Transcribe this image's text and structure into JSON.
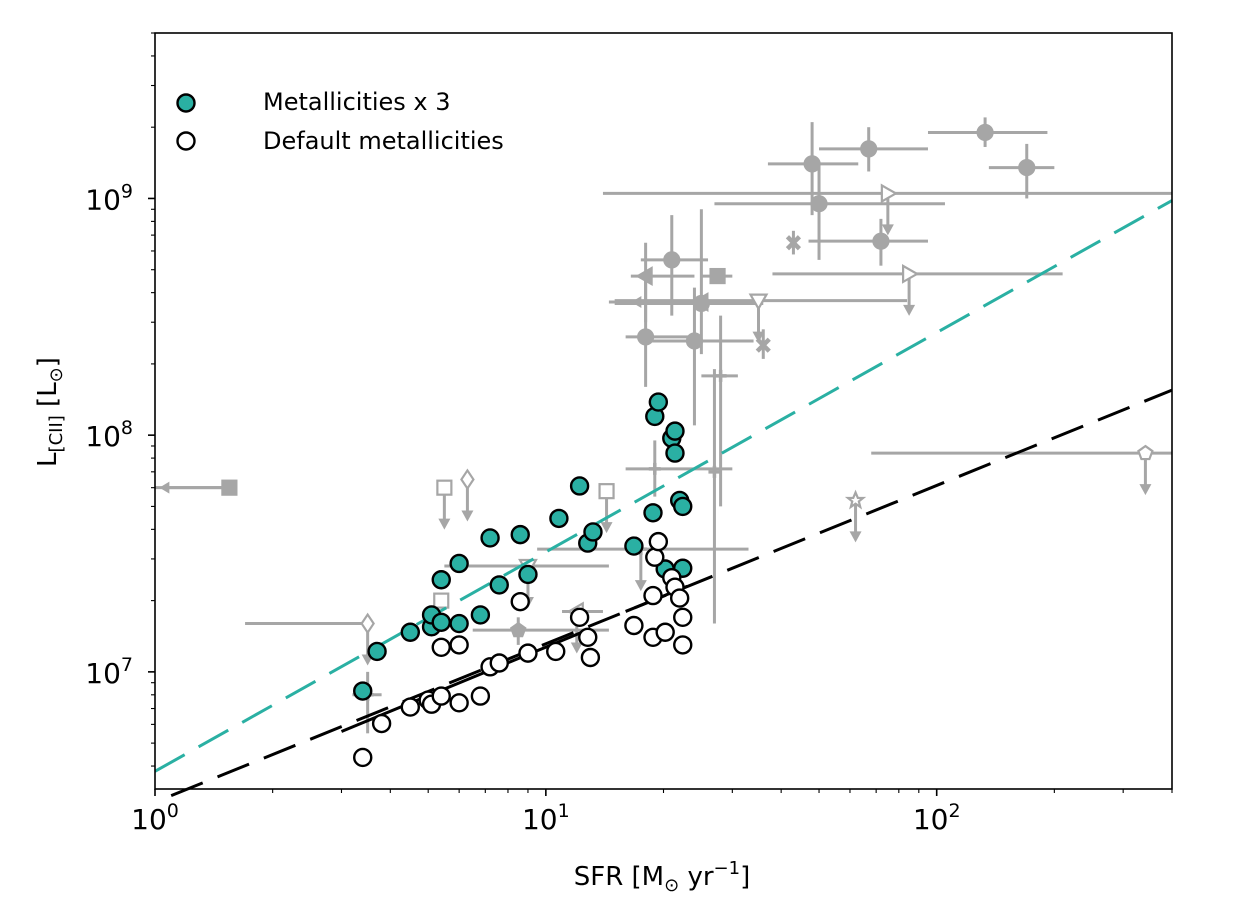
{
  "chart_data": {
    "type": "scatter",
    "xscale": "log",
    "yscale": "log",
    "xlim": [
      1,
      400
    ],
    "ylim": [
      3200000.0,
      5000000000.0
    ],
    "grid": false,
    "legend_position": "top-left",
    "xlabel": {
      "main": "SFR [M",
      "sub": "⊙",
      "mid": " yr",
      "sup": "−1",
      "end": "]"
    },
    "ylabel": {
      "main": "L",
      "sub": "[CII]",
      "mid": " [L",
      "sub2": "⊙",
      "end": "]"
    },
    "xticks": [
      {
        "value": 1,
        "base": "10",
        "exp": "0"
      },
      {
        "value": 10,
        "base": "10",
        "exp": "1"
      },
      {
        "value": 100,
        "base": "10",
        "exp": "2"
      }
    ],
    "yticks": [
      {
        "value": 10000000.0,
        "base": "10",
        "exp": "7"
      },
      {
        "value": 100000000.0,
        "base": "10",
        "exp": "8"
      },
      {
        "value": 1000000000.0,
        "base": "10",
        "exp": "9"
      }
    ],
    "colors": {
      "teal": "#2ab0a3",
      "black": "#000000",
      "grey": "#a6a6a6"
    },
    "legend": [
      {
        "label": "Metallicities x 3",
        "style": "filled"
      },
      {
        "label": "Default metallicities",
        "style": "open"
      }
    ],
    "series": [
      {
        "name": "Metallicities x 3",
        "marker": "filled-circle",
        "points": [
          [
            3.4,
            8300000.0
          ],
          [
            3.7,
            12200000.0
          ],
          [
            4.5,
            14700000.0
          ],
          [
            5.1,
            15500000.0
          ],
          [
            5.1,
            17400000.0
          ],
          [
            5.4,
            16200000.0
          ],
          [
            5.4,
            24500000.0
          ],
          [
            6.0,
            16000000.0
          ],
          [
            6.0,
            28700000.0
          ],
          [
            6.8,
            17400000.0
          ],
          [
            7.2,
            36800000.0
          ],
          [
            7.6,
            23300000.0
          ],
          [
            8.6,
            38000000.0
          ],
          [
            9.0,
            25800000.0
          ],
          [
            10.8,
            44500000.0
          ],
          [
            12.2,
            61000000.0
          ],
          [
            12.8,
            35000000.0
          ],
          [
            13.2,
            39000000.0
          ],
          [
            16.8,
            34000000.0
          ],
          [
            18.8,
            47000000.0
          ],
          [
            19.0,
            120000000.0
          ],
          [
            19.4,
            138000000.0
          ],
          [
            20.2,
            27200000.0
          ],
          [
            21.0,
            97000000.0
          ],
          [
            21.4,
            104000000.0
          ],
          [
            21.4,
            84000000.0
          ],
          [
            22.0,
            53000000.0
          ],
          [
            22.4,
            50000000.0
          ],
          [
            22.4,
            27400000.0
          ]
        ]
      },
      {
        "name": "Default metallicities",
        "marker": "open-circle",
        "points": [
          [
            3.4,
            4350000.0
          ],
          [
            3.8,
            6050000.0
          ],
          [
            4.5,
            7100000.0
          ],
          [
            5.0,
            7600000.0
          ],
          [
            5.1,
            7300000.0
          ],
          [
            5.4,
            7900000.0
          ],
          [
            5.4,
            12700000.0
          ],
          [
            6.0,
            7400000.0
          ],
          [
            6.0,
            13000000.0
          ],
          [
            6.8,
            7900000.0
          ],
          [
            7.2,
            10500000.0
          ],
          [
            7.6,
            10900000.0
          ],
          [
            8.6,
            19800000.0
          ],
          [
            9.0,
            12000000.0
          ],
          [
            10.6,
            12200000.0
          ],
          [
            12.2,
            17000000.0
          ],
          [
            12.8,
            14000000.0
          ],
          [
            13.0,
            11500000.0
          ],
          [
            16.8,
            15700000.0
          ],
          [
            18.8,
            21000000.0
          ],
          [
            18.8,
            14000000.0
          ],
          [
            19.0,
            30500000.0
          ],
          [
            19.4,
            35500000.0
          ],
          [
            20.2,
            14700000.0
          ],
          [
            21.0,
            25000000.0
          ],
          [
            21.4,
            22800000.0
          ],
          [
            22.0,
            20500000.0
          ],
          [
            22.4,
            17000000.0
          ],
          [
            22.4,
            13000000.0
          ]
        ]
      }
    ],
    "lines": [
      {
        "style": "dashed",
        "color": "teal",
        "x": [
          1,
          400
        ],
        "y": [
          3800000.0,
          980000000.0
        ]
      },
      {
        "style": "dashed",
        "color": "black",
        "x": [
          1.1,
          400
        ],
        "y": [
          3000000.0,
          155000000.0
        ]
      },
      {
        "style": "solid",
        "color": "black",
        "x": [
          3.0,
          13.0
        ],
        "y": [
          5600000.0,
          15200000.0
        ]
      },
      {
        "style": "solid",
        "color": "black",
        "x": [
          16.0,
          23.0
        ],
        "y": [
          18000000.0,
          23000000.0
        ]
      }
    ],
    "reference_points": [
      {
        "x": 1.55,
        "y": 60000000.0,
        "marker": "s",
        "fill": true,
        "xerr": [
          1.55,
          1.0
        ],
        "arrow": "left"
      },
      {
        "x": 5.5,
        "y": 60000000.0,
        "marker": "s",
        "fill": false,
        "arrow": "down"
      },
      {
        "x": 6.3,
        "y": 65000000.0,
        "marker": "d",
        "fill": false,
        "arrow": "down"
      },
      {
        "x": 14.3,
        "y": 58000000.0,
        "marker": "s",
        "fill": false,
        "arrow": "down"
      },
      {
        "x": 3.5,
        "y": 16000000.0,
        "marker": "d",
        "fill": false,
        "xerr": [
          3.5,
          1.7
        ],
        "arrow": "down"
      },
      {
        "x": 5.4,
        "y": 20000000.0,
        "marker": "s",
        "fill": false
      },
      {
        "x": 3.5,
        "y": 8000000.0,
        "marker": "+",
        "fill": true,
        "xerr": [
          3.2,
          3.8
        ],
        "yerr": [
          5500000.0,
          10000000.0
        ]
      },
      {
        "x": 8.5,
        "y": 15000000.0,
        "marker": "p",
        "fill": true,
        "xerr": [
          6.5,
          14.5
        ],
        "yerr": [
          13000000.0,
          17000000.0
        ]
      },
      {
        "x": 9.0,
        "y": 28000000.0,
        "marker": "v",
        "fill": false,
        "xerr": [
          5.5,
          14.5
        ],
        "arrow": "down"
      },
      {
        "x": 12.0,
        "y": 18000000.0,
        "marker": "<",
        "fill": false,
        "xerr": [
          11.0,
          14.0
        ],
        "arrow": "down"
      },
      {
        "x": 19.0,
        "y": 72000000.0,
        "marker": "+",
        "fill": true,
        "xerr": [
          16.0,
          30.0
        ],
        "yerr": [
          55000000.0,
          95000000.0
        ]
      },
      {
        "x": 17.5,
        "y": 33000000.0,
        "marker": "+",
        "fill": true,
        "xerr": [
          9.5,
          33.0
        ],
        "arrow": "down"
      },
      {
        "x": 27.0,
        "y": 70000000.0,
        "marker": "+",
        "fill": true,
        "yerr": [
          16000000.0,
          190000000.0
        ]
      },
      {
        "x": 28.0,
        "y": 178000000.0,
        "marker": "+",
        "fill": true,
        "xerr": [
          25.0,
          31.0
        ],
        "yerr": [
          50000000.0,
          320000000.0
        ]
      },
      {
        "x": 18.0,
        "y": 260000000.0,
        "marker": "o",
        "fill": true,
        "xerr": [
          16.0,
          24.0
        ],
        "yerr": [
          160000000.0,
          450000000.0
        ]
      },
      {
        "x": 18.0,
        "y": 470000000.0,
        "marker": "<",
        "fill": true,
        "xerr": [
          16.5,
          24.0
        ],
        "yerr": [
          300000000.0,
          650000000.0
        ]
      },
      {
        "x": 21.0,
        "y": 550000000.0,
        "marker": "o",
        "fill": true,
        "xerr": [
          17.5,
          26.0
        ],
        "yerr": [
          320000000.0,
          850000000.0
        ]
      },
      {
        "x": 25.0,
        "y": 360000000.0,
        "marker": "o",
        "fill": true,
        "xerr": [
          15.0,
          36.0
        ],
        "yerr": [
          220000000.0,
          900000000.0
        ]
      },
      {
        "x": 24.0,
        "y": 250000000.0,
        "marker": "o",
        "fill": true,
        "xerr": [
          18.0,
          34.0
        ],
        "yerr": [
          110000000.0,
          420000000.0
        ]
      },
      {
        "x": 27.5,
        "y": 470000000.0,
        "marker": "s",
        "fill": true,
        "xerr": [
          25.0,
          30.0
        ]
      },
      {
        "x": 25.0,
        "y": 365000000.0,
        "marker": "<",
        "fill": true,
        "xerr": [
          14.5,
          35.0
        ],
        "arrow": "left"
      },
      {
        "x": 35.0,
        "y": 370000000.0,
        "marker": "v",
        "fill": false,
        "xerr": [
          15.0,
          84.0
        ],
        "arrow": "down"
      },
      {
        "x": 36.0,
        "y": 240000000.0,
        "marker": "X",
        "fill": true,
        "yerr": [
          210000000.0,
          280000000.0
        ]
      },
      {
        "x": 43.0,
        "y": 650000000.0,
        "marker": "X",
        "fill": true,
        "yerr": [
          580000000.0,
          730000000.0
        ]
      },
      {
        "x": 48.0,
        "y": 1400000000.0,
        "marker": "o",
        "fill": true,
        "xerr": [
          37.0,
          63.0
        ],
        "yerr": [
          850000000.0,
          2100000000.0
        ]
      },
      {
        "x": 50.0,
        "y": 950000000.0,
        "marker": "o",
        "fill": true,
        "xerr": [
          27.0,
          105.0
        ],
        "yerr": [
          550000000.0,
          1400000000.0
        ]
      },
      {
        "x": 67.0,
        "y": 1620000000.0,
        "marker": "o",
        "fill": true,
        "xerr": [
          50.0,
          95.0
        ],
        "yerr": [
          1300000000.0,
          2000000000.0
        ]
      },
      {
        "x": 72.0,
        "y": 660000000.0,
        "marker": "o",
        "fill": true,
        "xerr": [
          47.0,
          95.0
        ],
        "yerr": [
          520000000.0,
          820000000.0
        ]
      },
      {
        "x": 75.0,
        "y": 1050000000.0,
        "marker": ">",
        "fill": false,
        "xerr": [
          14.0,
          400.0
        ],
        "arrow": "down"
      },
      {
        "x": 85.0,
        "y": 480000000.0,
        "marker": ">",
        "fill": false,
        "xerr": [
          38.0,
          210.0
        ],
        "arrow": "down"
      },
      {
        "x": 133.0,
        "y": 1900000000.0,
        "marker": "o",
        "fill": true,
        "xerr": [
          95.0,
          192.0
        ],
        "yerr": [
          1650000000.0,
          2200000000.0
        ]
      },
      {
        "x": 170.0,
        "y": 1350000000.0,
        "marker": "o",
        "fill": true,
        "xerr": [
          136.0,
          200.0
        ],
        "yerr": [
          1000000000.0,
          1700000000.0
        ]
      },
      {
        "x": 62.0,
        "y": 53000000.0,
        "marker": "*",
        "fill": false,
        "arrow": "down"
      },
      {
        "x": 342.0,
        "y": 84000000.0,
        "marker": "p",
        "fill": false,
        "xerr": [
          68.0,
          400.0
        ],
        "arrow": "down"
      }
    ]
  }
}
